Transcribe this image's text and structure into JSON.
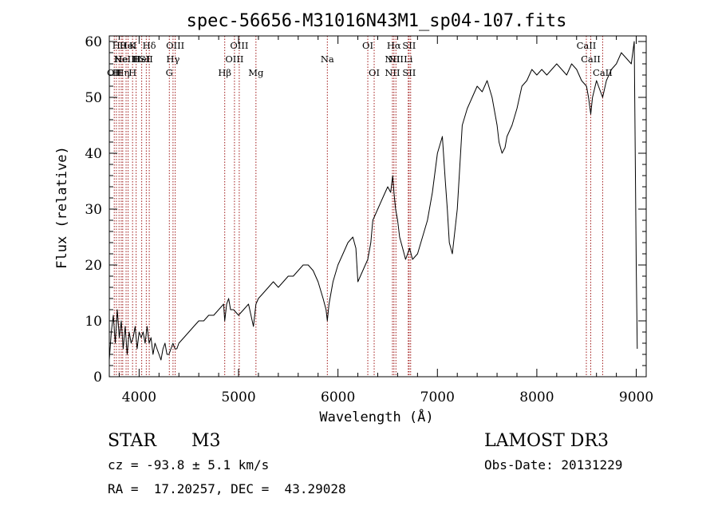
{
  "chart_data": {
    "type": "line",
    "title": "spec-56656-M31016N43M1_sp04-107.fits",
    "xlabel": "Wavelength (Å)",
    "ylabel": "Flux (relative)",
    "xlim": [
      3700,
      9100
    ],
    "ylim": [
      0,
      61
    ],
    "xticks": [
      4000,
      5000,
      6000,
      7000,
      8000,
      9000
    ],
    "yticks": [
      0,
      10,
      20,
      30,
      40,
      50,
      60
    ],
    "series": [
      {
        "name": "spectrum",
        "x": [
          3700,
          3720,
          3740,
          3760,
          3780,
          3800,
          3820,
          3840,
          3860,
          3880,
          3900,
          3920,
          3940,
          3960,
          3980,
          4000,
          4020,
          4040,
          4060,
          4080,
          4100,
          4120,
          4140,
          4160,
          4180,
          4200,
          4220,
          4240,
          4260,
          4280,
          4300,
          4320,
          4340,
          4360,
          4380,
          4400,
          4450,
          4500,
          4550,
          4600,
          4650,
          4700,
          4750,
          4800,
          4850,
          4861,
          4880,
          4900,
          4920,
          4950,
          5000,
          5050,
          5100,
          5150,
          5175,
          5200,
          5250,
          5300,
          5350,
          5400,
          5450,
          5500,
          5550,
          5600,
          5650,
          5700,
          5750,
          5800,
          5850,
          5880,
          5893,
          5910,
          5950,
          6000,
          6050,
          6100,
          6150,
          6180,
          6200,
          6250,
          6300,
          6330,
          6350,
          6400,
          6450,
          6500,
          6530,
          6550,
          6563,
          6580,
          6600,
          6620,
          6650,
          6680,
          6700,
          6720,
          6750,
          6800,
          6850,
          6900,
          6950,
          7000,
          7050,
          7080,
          7100,
          7120,
          7150,
          7200,
          7250,
          7300,
          7350,
          7400,
          7450,
          7500,
          7550,
          7600,
          7620,
          7650,
          7680,
          7700,
          7750,
          7800,
          7850,
          7900,
          7950,
          8000,
          8050,
          8100,
          8150,
          8200,
          8250,
          8300,
          8350,
          8400,
          8450,
          8500,
          8520,
          8542,
          8560,
          8600,
          8620,
          8662,
          8700,
          8750,
          8800,
          8850,
          8900,
          8950,
          8980,
          9000,
          9010
        ],
        "y": [
          3,
          8,
          11,
          6,
          12,
          7,
          10,
          5,
          9,
          4,
          8,
          6,
          7,
          9,
          5,
          8,
          7,
          8,
          6,
          9,
          6,
          7,
          4,
          6,
          5,
          4,
          3,
          5,
          6,
          4,
          4,
          5,
          6,
          5,
          5,
          6,
          7,
          8,
          9,
          10,
          10,
          11,
          11,
          12,
          13,
          10,
          13,
          14,
          12,
          12,
          11,
          12,
          13,
          9,
          13,
          14,
          15,
          16,
          17,
          16,
          17,
          18,
          18,
          19,
          20,
          20,
          19,
          17,
          14,
          12,
          10,
          13,
          17,
          20,
          22,
          24,
          25,
          23,
          17,
          19,
          21,
          24,
          28,
          30,
          32,
          34,
          33,
          36,
          33,
          30,
          28,
          25,
          23,
          21,
          22,
          23,
          21,
          22,
          25,
          28,
          33,
          40,
          43,
          35,
          30,
          24,
          22,
          30,
          45,
          48,
          50,
          52,
          51,
          53,
          50,
          45,
          42,
          40,
          41,
          43,
          45,
          48,
          52,
          53,
          55,
          54,
          55,
          54,
          55,
          56,
          55,
          54,
          56,
          55,
          53,
          52,
          50,
          47,
          50,
          53,
          52,
          50,
          53,
          55,
          56,
          58,
          57,
          56,
          60,
          20,
          5
        ]
      }
    ],
    "reference_lines": [
      {
        "wl": 3750,
        "labels": [
          {
            "row": 2,
            "text": "OII"
          }
        ]
      },
      {
        "wl": 3771,
        "labels": [
          {
            "row": 2,
            "text": "H"
          }
        ]
      },
      {
        "wl": 3798,
        "labels": [
          {
            "row": 0,
            "text": "Hθ"
          }
        ]
      },
      {
        "wl": 3820,
        "labels": [
          {
            "row": 1,
            "text": "He"
          }
        ]
      },
      {
        "wl": 3835,
        "labels": [
          {
            "row": 2,
            "text": "Hη"
          }
        ]
      },
      {
        "wl": 3869,
        "labels": [
          {
            "row": 1,
            "text": "NeIII"
          }
        ]
      },
      {
        "wl": 3889,
        "labels": [
          {
            "row": 0,
            "text": "HeI"
          }
        ]
      },
      {
        "wl": 3934,
        "labels": [
          {
            "row": 0,
            "text": "K"
          },
          {
            "row": 2,
            "text": "H"
          }
        ]
      },
      {
        "wl": 3970,
        "labels": [
          {
            "row": 1,
            "text": "H"
          }
        ]
      },
      {
        "wl": 4026,
        "labels": [
          {
            "row": 1,
            "text": "HeI"
          }
        ]
      },
      {
        "wl": 4072,
        "labels": [
          {
            "row": 1,
            "text": "SII"
          }
        ]
      },
      {
        "wl": 4102,
        "labels": [
          {
            "row": 0,
            "text": "Hδ"
          }
        ]
      },
      {
        "wl": 4304,
        "labels": [
          {
            "row": 2,
            "text": "G"
          }
        ]
      },
      {
        "wl": 4341,
        "labels": [
          {
            "row": 1,
            "text": "Hγ"
          }
        ]
      },
      {
        "wl": 4363,
        "labels": [
          {
            "row": 0,
            "text": "OIII"
          }
        ]
      },
      {
        "wl": 4861,
        "labels": [
          {
            "row": 2,
            "text": "Hβ"
          }
        ]
      },
      {
        "wl": 4959,
        "labels": [
          {
            "row": 1,
            "text": "OIII"
          }
        ]
      },
      {
        "wl": 5007,
        "labels": [
          {
            "row": 0,
            "text": "OIII"
          }
        ]
      },
      {
        "wl": 5175,
        "labels": [
          {
            "row": 2,
            "text": "Mg"
          }
        ]
      },
      {
        "wl": 5893,
        "labels": [
          {
            "row": 1,
            "text": "Na"
          }
        ]
      },
      {
        "wl": 6300,
        "labels": [
          {
            "row": 0,
            "text": "OI"
          }
        ]
      },
      {
        "wl": 6364,
        "labels": [
          {
            "row": 2,
            "text": "OI"
          }
        ]
      },
      {
        "wl": 6548,
        "labels": [
          {
            "row": 1,
            "text": "NII"
          },
          {
            "row": 2,
            "text": "NII"
          }
        ]
      },
      {
        "wl": 6563,
        "labels": [
          {
            "row": 0,
            "text": "Hα"
          }
        ]
      },
      {
        "wl": 6583,
        "labels": [
          {
            "row": 1,
            "text": "NII"
          }
        ]
      },
      {
        "wl": 6707,
        "labels": [
          {
            "row": 1,
            "text": "Li"
          }
        ]
      },
      {
        "wl": 6716,
        "labels": [
          {
            "row": 0,
            "text": "SII"
          },
          {
            "row": 2,
            "text": "SII"
          }
        ]
      },
      {
        "wl": 6731,
        "labels": []
      },
      {
        "wl": 8498,
        "labels": [
          {
            "row": 0,
            "text": "CaII"
          }
        ]
      },
      {
        "wl": 8542,
        "labels": [
          {
            "row": 1,
            "text": "CaII"
          }
        ]
      },
      {
        "wl": 8662,
        "labels": [
          {
            "row": 2,
            "text": "CaII"
          }
        ]
      }
    ]
  },
  "info": {
    "object_type": "STAR",
    "subclass": "M3",
    "survey": "LAMOST DR3",
    "cz": "cz = -93.8 ± 5.1 km/s",
    "obs_date": "Obs-Date: 20131229",
    "coords": "RA =  17.20257, DEC =  43.29028"
  },
  "colors": {
    "spectrum": "#000000",
    "reference_line": "#a01818",
    "axis": "#000000"
  }
}
